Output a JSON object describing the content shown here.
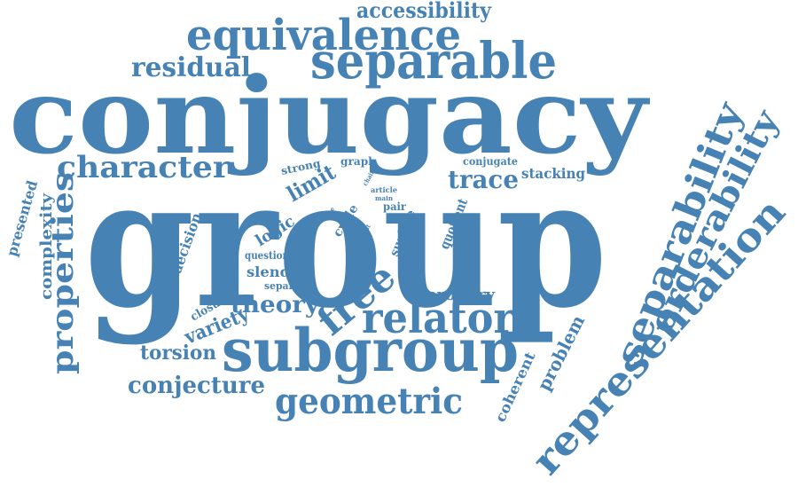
{
  "cloud": {
    "color": "#4682b4",
    "words": [
      {
        "text": "group"
      },
      {
        "text": "conjugacy"
      },
      {
        "text": "subgroup"
      },
      {
        "text": "separable"
      },
      {
        "text": "equivalence"
      },
      {
        "text": "relator"
      },
      {
        "text": "separability"
      },
      {
        "text": "representation"
      },
      {
        "text": "orderability"
      },
      {
        "text": "character"
      },
      {
        "text": "properties"
      },
      {
        "text": "free"
      },
      {
        "text": "geometric"
      },
      {
        "text": "residual"
      },
      {
        "text": "accessibility"
      },
      {
        "text": "trace"
      },
      {
        "text": "conjecture"
      },
      {
        "text": "theory"
      },
      {
        "text": "limit"
      },
      {
        "text": "variety"
      },
      {
        "text": "torsion"
      },
      {
        "text": "complexity"
      },
      {
        "text": "presented"
      },
      {
        "text": "problem"
      },
      {
        "text": "coherent"
      },
      {
        "text": "corollary"
      },
      {
        "text": "decision"
      },
      {
        "text": "logic"
      },
      {
        "text": "slender"
      },
      {
        "text": "stacking"
      },
      {
        "text": "quotient"
      },
      {
        "text": "surface"
      },
      {
        "text": "cycle"
      },
      {
        "text": "closure"
      },
      {
        "text": "conjugate"
      },
      {
        "text": "strong"
      },
      {
        "text": "question"
      },
      {
        "text": "separate"
      },
      {
        "text": "graph"
      },
      {
        "text": "pair"
      },
      {
        "text": "article"
      },
      {
        "text": "main"
      },
      {
        "text": "chain"
      },
      {
        "text": "size"
      },
      {
        "text": "result"
      }
    ]
  }
}
